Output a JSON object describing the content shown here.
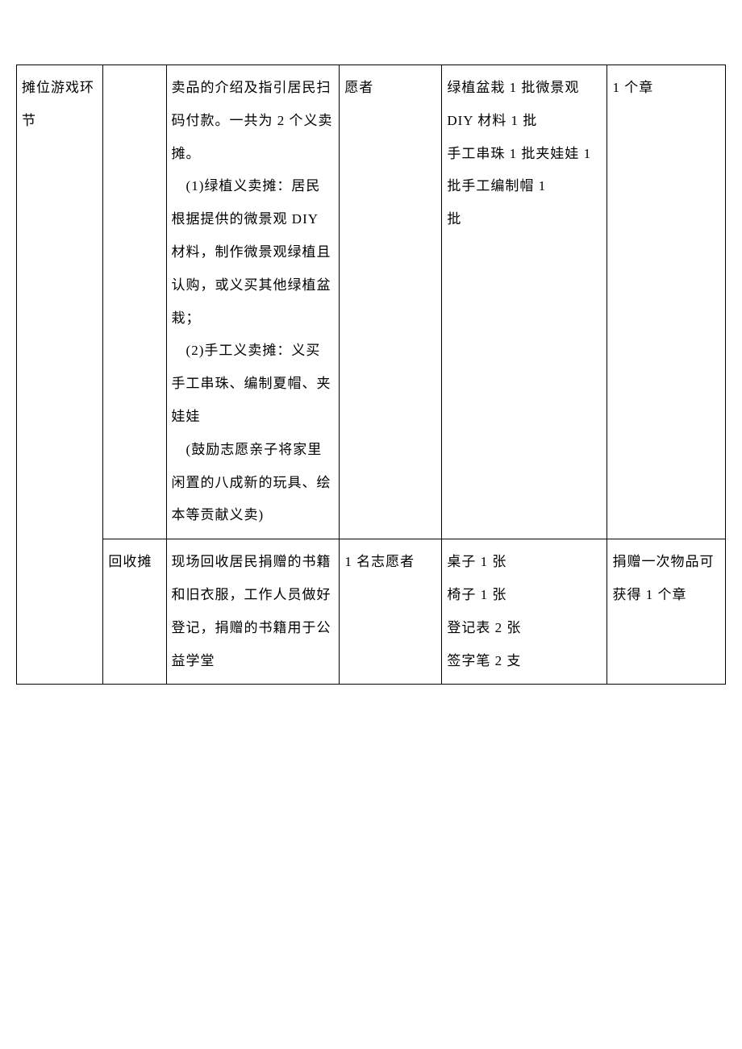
{
  "table": {
    "columns": [
      {
        "width": "11%"
      },
      {
        "width": "8%"
      },
      {
        "width": "22%"
      },
      {
        "width": "13%"
      },
      {
        "width": "21%"
      },
      {
        "width": "15%"
      }
    ],
    "border_color": "#000000",
    "background_color": "#ffffff",
    "font_size": 17,
    "line_height": 2.4,
    "text_color": "#000000",
    "rows": [
      {
        "cells": [
          {
            "text": "摊位游戏环节",
            "rowspan": 2
          },
          {
            "text": ""
          },
          {
            "text": "卖品的介绍及指引居民扫码付款。一共为 2 个义卖摊。\n　(1)绿植义卖摊：居民根据提供的微景观 DIY 材料，制作微景观绿植且认购，或义买其他绿植盆栽；\n　(2)手工义卖摊：义买手工串珠、编制夏帽、夹娃娃\n　(鼓励志愿亲子将家里闲置的八成新的玩具、绘本等贡献义卖)"
          },
          {
            "text": "愿者"
          },
          {
            "text": "绿植盆栽 1 批微景观 DIY 材料 1 批\n手工串珠 1 批夹娃娃 1 批手工编制帽 1\n批"
          },
          {
            "text": "1 个章"
          }
        ]
      },
      {
        "cells": [
          {
            "text": "回收摊"
          },
          {
            "text": "现场回收居民捐赠的书籍和旧衣服，工作人员做好登记，捐赠的书籍用于公益学堂"
          },
          {
            "text": "1 名志愿者"
          },
          {
            "text": "桌子 1 张\n椅子 1 张\n登记表 2 张\n签字笔 2 支"
          },
          {
            "text": "捐赠一次物品可获得 1 个章"
          }
        ]
      }
    ]
  }
}
